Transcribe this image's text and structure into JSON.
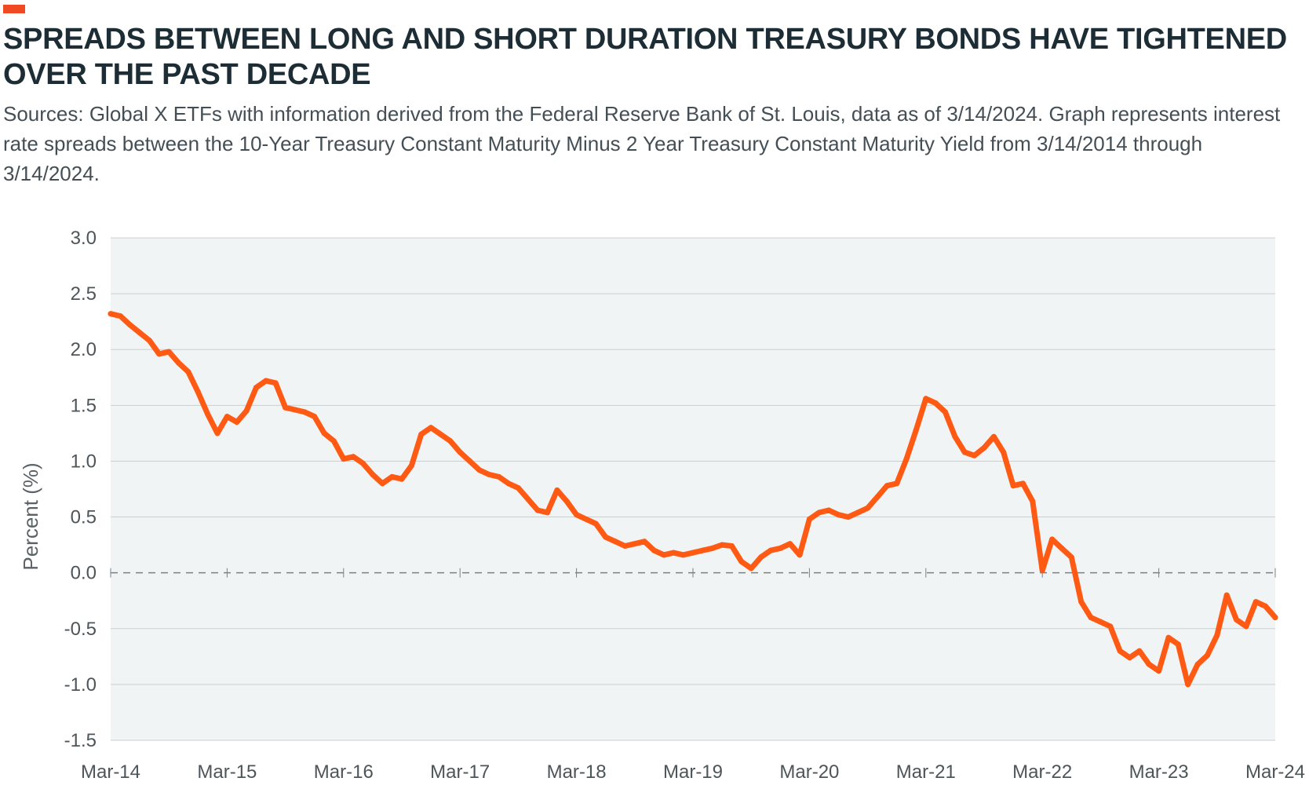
{
  "title": "SPREADS BETWEEN LONG AND SHORT DURATION TREASURY BONDS HAVE TIGHTENED OVER THE PAST DECADE",
  "subtitle": "Sources: Global X ETFs with information derived from the Federal Reserve Bank of St. Louis, data as of 3/14/2024. Graph represents interest rate spreads between the 10-Year Treasury Constant Maturity Minus 2 Year Treasury Constant Maturity Yield from 3/14/2014 through 3/14/2024.",
  "colors": {
    "accent": "#ef4a23",
    "line": "#ff5a14",
    "plot_background": "#f1f4f4",
    "gridline": "#c9cfd0",
    "zero_line": "#7a8185"
  },
  "chart_data": {
    "type": "line",
    "title": "SPREADS BETWEEN LONG AND SHORT DURATION TREASURY BONDS HAVE TIGHTENED OVER THE PAST DECADE",
    "xlabel": "",
    "ylabel": "Percent (%)",
    "ylim": [
      -1.5,
      3.0
    ],
    "yticks": [
      3.0,
      2.5,
      2.0,
      1.5,
      1.0,
      0.5,
      0.0,
      -0.5,
      -1.0,
      -1.5
    ],
    "ytick_labels": [
      "3.0",
      "2.5",
      "2.0",
      "1.5",
      "1.0",
      "0.5",
      "0.0",
      "-0.5",
      "-1.0",
      "-1.5"
    ],
    "xlim": [
      "2014-03",
      "2024-03"
    ],
    "xticks": [
      "2014-03",
      "2015-03",
      "2016-03",
      "2017-03",
      "2018-03",
      "2019-03",
      "2020-03",
      "2021-03",
      "2022-03",
      "2023-03",
      "2024-03"
    ],
    "xtick_labels": [
      "Mar-14",
      "Mar-15",
      "Mar-16",
      "Mar-17",
      "Mar-18",
      "Mar-19",
      "Mar-20",
      "Mar-21",
      "Mar-22",
      "Mar-23",
      "Mar-24"
    ],
    "grid": "horizontal",
    "reference_line": {
      "y": 0.0,
      "style": "dashed"
    },
    "series": [
      {
        "x": [
          "2014-03",
          "2014-04",
          "2014-05",
          "2014-06",
          "2014-07",
          "2014-08",
          "2014-09",
          "2014-10",
          "2014-11",
          "2014-12",
          "2015-01",
          "2015-02",
          "2015-03",
          "2015-04",
          "2015-05",
          "2015-06",
          "2015-07",
          "2015-08",
          "2015-09",
          "2015-10",
          "2015-11",
          "2015-12",
          "2016-01",
          "2016-02",
          "2016-03",
          "2016-04",
          "2016-05",
          "2016-06",
          "2016-07",
          "2016-08",
          "2016-09",
          "2016-10",
          "2016-11",
          "2016-12",
          "2017-01",
          "2017-02",
          "2017-03",
          "2017-04",
          "2017-05",
          "2017-06",
          "2017-07",
          "2017-08",
          "2017-09",
          "2017-10",
          "2017-11",
          "2017-12",
          "2018-01",
          "2018-02",
          "2018-03",
          "2018-04",
          "2018-05",
          "2018-06",
          "2018-07",
          "2018-08",
          "2018-09",
          "2018-10",
          "2018-11",
          "2018-12",
          "2019-01",
          "2019-02",
          "2019-03",
          "2019-04",
          "2019-05",
          "2019-06",
          "2019-07",
          "2019-08",
          "2019-09",
          "2019-10",
          "2019-11",
          "2019-12",
          "2020-01",
          "2020-02",
          "2020-03",
          "2020-04",
          "2020-05",
          "2020-06",
          "2020-07",
          "2020-08",
          "2020-09",
          "2020-10",
          "2020-11",
          "2020-12",
          "2021-01",
          "2021-02",
          "2021-03",
          "2021-04",
          "2021-05",
          "2021-06",
          "2021-07",
          "2021-08",
          "2021-09",
          "2021-10",
          "2021-11",
          "2021-12",
          "2022-01",
          "2022-02",
          "2022-03",
          "2022-04",
          "2022-05",
          "2022-06",
          "2022-07",
          "2022-08",
          "2022-09",
          "2022-10",
          "2022-11",
          "2022-12",
          "2023-01",
          "2023-02",
          "2023-03",
          "2023-04",
          "2023-05",
          "2023-06",
          "2023-07",
          "2023-08",
          "2023-09",
          "2023-10",
          "2023-11",
          "2023-12",
          "2024-01",
          "2024-02",
          "2024-03"
        ],
        "values": [
          2.32,
          2.3,
          2.22,
          2.15,
          2.08,
          1.96,
          1.98,
          1.88,
          1.8,
          1.62,
          1.42,
          1.25,
          1.4,
          1.35,
          1.45,
          1.66,
          1.72,
          1.7,
          1.48,
          1.46,
          1.44,
          1.4,
          1.25,
          1.18,
          1.02,
          1.04,
          0.98,
          0.88,
          0.8,
          0.86,
          0.84,
          0.96,
          1.24,
          1.3,
          1.24,
          1.18,
          1.08,
          1.0,
          0.92,
          0.88,
          0.86,
          0.8,
          0.76,
          0.66,
          0.56,
          0.54,
          0.74,
          0.64,
          0.52,
          0.48,
          0.44,
          0.32,
          0.28,
          0.24,
          0.26,
          0.28,
          0.2,
          0.16,
          0.18,
          0.16,
          0.18,
          0.2,
          0.22,
          0.25,
          0.24,
          0.1,
          0.04,
          0.14,
          0.2,
          0.22,
          0.26,
          0.16,
          0.48,
          0.54,
          0.56,
          0.52,
          0.5,
          0.54,
          0.58,
          0.68,
          0.78,
          0.8,
          1.02,
          1.28,
          1.56,
          1.52,
          1.44,
          1.22,
          1.08,
          1.05,
          1.12,
          1.22,
          1.08,
          0.78,
          0.8,
          0.64,
          0.02,
          0.3,
          0.22,
          0.14,
          -0.26,
          -0.4,
          -0.44,
          -0.48,
          -0.7,
          -0.76,
          -0.7,
          -0.82,
          -0.88,
          -0.58,
          -0.64,
          -1.0,
          -0.82,
          -0.74,
          -0.56,
          -0.2,
          -0.42,
          -0.48,
          -0.26,
          -0.3,
          -0.4
        ]
      }
    ]
  }
}
